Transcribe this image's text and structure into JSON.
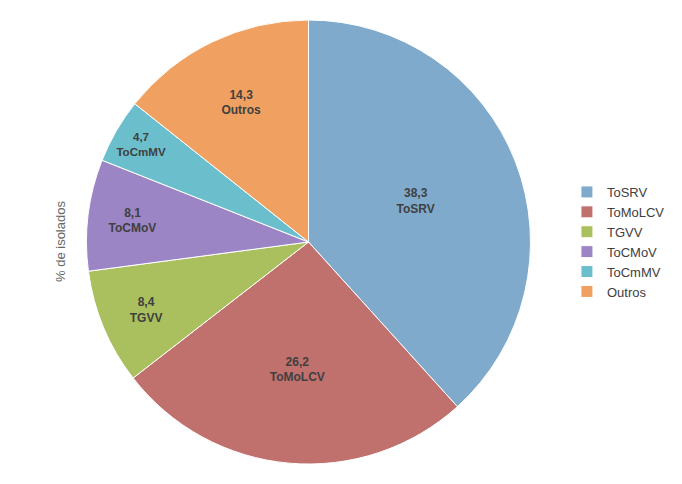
{
  "chart_data": {
    "type": "pie",
    "categories": [
      "ToSRV",
      "ToMoLCV",
      "TGVV",
      "ToCMoV",
      "ToCmMV",
      "Outros"
    ],
    "values": [
      38.3,
      26.2,
      8.4,
      8.1,
      4.7,
      14.3
    ],
    "value_labels": [
      "38,3",
      "26,2",
      "8,4",
      "8,1",
      "4,7",
      "14,3"
    ],
    "colors": [
      "#7faacc",
      "#c0706d",
      "#aabf5e",
      "#9b85c4",
      "#6bbfcc",
      "#f0a060"
    ],
    "ylabel": "% de isolados",
    "data_labels": true,
    "legend": "right"
  }
}
